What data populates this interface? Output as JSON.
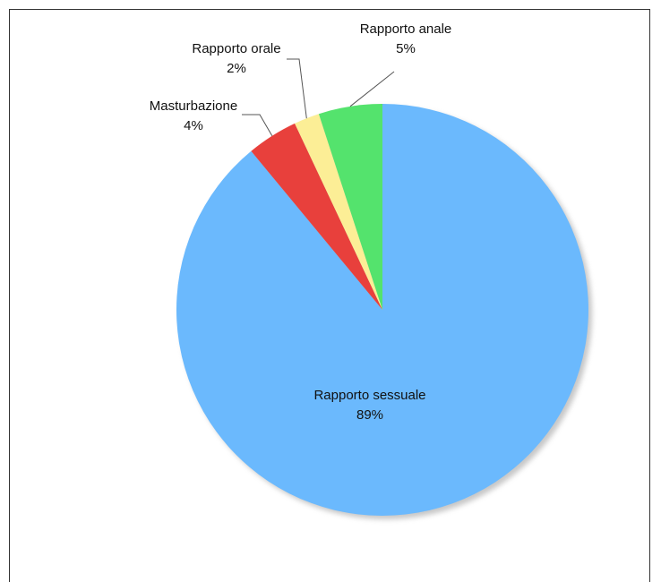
{
  "chart_data": {
    "type": "pie",
    "title": "",
    "start": "top",
    "direction": "clockwise",
    "slices": [
      {
        "label": "Rapporto sessuale",
        "value": 89,
        "value_label": "89%",
        "color": "#6bb9fd"
      },
      {
        "label": "Masturbazione",
        "value": 4,
        "value_label": "4%",
        "color": "#e8403c"
      },
      {
        "label": "Rapporto orale",
        "value": 2,
        "value_label": "2%",
        "color": "#fcee96"
      },
      {
        "label": "Rapporto anale",
        "value": 5,
        "value_label": "5%",
        "color": "#54e36d"
      }
    ]
  }
}
